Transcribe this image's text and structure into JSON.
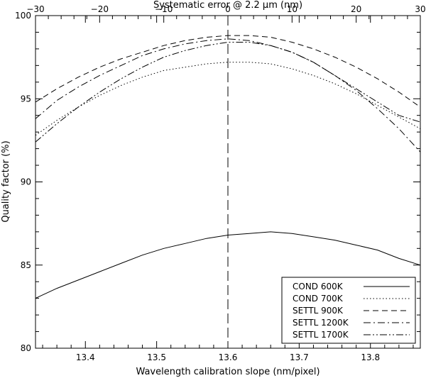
{
  "chart_data": {
    "type": "line",
    "title": "",
    "xlabel": "Wavelength calibration slope (nm/pixel)",
    "ylabel": "Quality factor (%)",
    "top_xlabel": "Systematic error @ 2.2 μm (nm)",
    "xlim": [
      13.33,
      13.87
    ],
    "ylim": [
      80,
      100
    ],
    "top_xlim": [
      -30,
      30
    ],
    "x_ticks": [
      13.4,
      13.5,
      13.6,
      13.7,
      13.8
    ],
    "x_tick_labels": [
      "13.4",
      "13.5",
      "13.6",
      "13.7",
      "13.8"
    ],
    "top_x_ticks": [
      -30,
      -20,
      -10,
      0,
      10,
      20,
      30
    ],
    "top_x_tick_labels": [
      "−30",
      "−20",
      "−10",
      "0",
      "10",
      "20",
      "30"
    ],
    "y_ticks": [
      80,
      85,
      90,
      95,
      100
    ],
    "y_tick_labels": [
      "80",
      "85",
      "90",
      "95",
      "100"
    ],
    "reference_line_x": 13.6,
    "grid": false,
    "legend_position": "bottom-right",
    "x": [
      13.33,
      13.36,
      13.39,
      13.42,
      13.45,
      13.48,
      13.51,
      13.54,
      13.57,
      13.6,
      13.63,
      13.66,
      13.69,
      13.72,
      13.75,
      13.78,
      13.81,
      13.84,
      13.87
    ],
    "series": [
      {
        "name": "COND   600K",
        "dash": "solid",
        "values": [
          83.0,
          83.6,
          84.1,
          84.6,
          85.1,
          85.6,
          86.0,
          86.3,
          86.6,
          86.8,
          86.9,
          87.0,
          86.9,
          86.7,
          86.5,
          86.2,
          85.9,
          85.4,
          85.0
        ]
      },
      {
        "name": "COND   700K",
        "dash": "dot",
        "values": [
          92.8,
          93.7,
          94.5,
          95.2,
          95.8,
          96.3,
          96.7,
          96.9,
          97.1,
          97.2,
          97.2,
          97.1,
          96.8,
          96.4,
          95.9,
          95.3,
          94.6,
          93.9,
          93.2
        ]
      },
      {
        "name": "SETTL   900K",
        "dash": "dash",
        "values": [
          94.8,
          95.6,
          96.3,
          96.9,
          97.4,
          97.8,
          98.2,
          98.5,
          98.7,
          98.8,
          98.8,
          98.7,
          98.4,
          98.0,
          97.5,
          96.9,
          96.2,
          95.4,
          94.5
        ]
      },
      {
        "name": "SETTL  1200K",
        "dash": "dashdot",
        "values": [
          93.8,
          94.9,
          95.7,
          96.4,
          97.0,
          97.6,
          98.0,
          98.3,
          98.5,
          98.6,
          98.5,
          98.2,
          97.8,
          97.2,
          96.4,
          95.5,
          94.4,
          93.2,
          91.8
        ]
      },
      {
        "name": "SETTL  1700K",
        "dash": "dashdotdot",
        "values": [
          92.4,
          93.5,
          94.5,
          95.4,
          96.2,
          96.9,
          97.5,
          97.9,
          98.2,
          98.4,
          98.4,
          98.2,
          97.8,
          97.2,
          96.4,
          95.6,
          94.8,
          94.0,
          93.6
        ]
      }
    ]
  }
}
